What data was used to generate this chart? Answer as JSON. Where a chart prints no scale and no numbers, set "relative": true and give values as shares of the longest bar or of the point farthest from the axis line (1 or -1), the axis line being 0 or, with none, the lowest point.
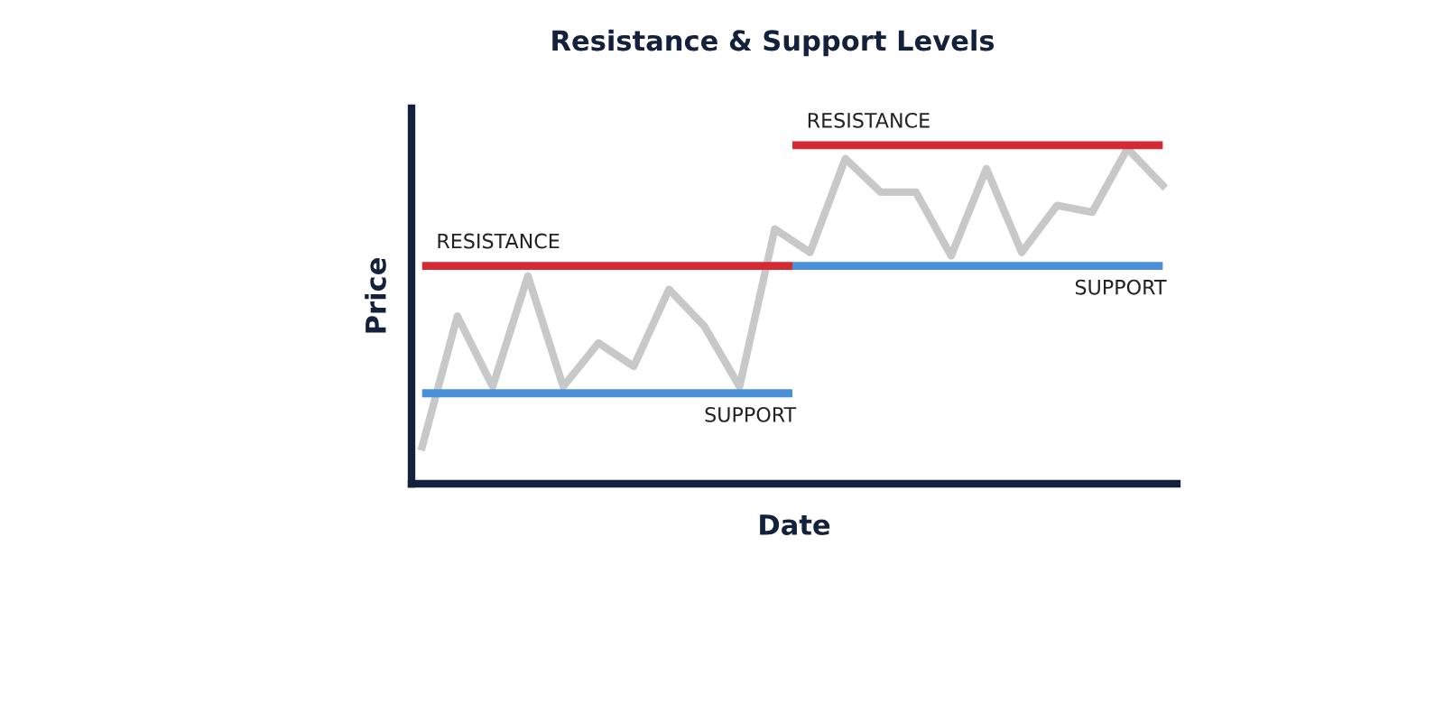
{
  "chart_data": {
    "type": "line",
    "title": "Resistance & Support Levels",
    "xlabel": "Date",
    "ylabel": "Price",
    "relative": true,
    "marker": "none",
    "line_style": "solid",
    "categories": [
      null,
      null,
      null,
      null,
      null,
      null,
      null,
      null,
      null,
      null,
      null,
      null,
      null,
      null,
      null,
      null,
      null,
      null,
      null,
      null,
      null,
      null
    ],
    "series": [
      {
        "color": "#c8c8c8",
        "values": [
          0.11,
          0.5,
          0.29,
          0.62,
          0.29,
          0.42,
          0.35,
          0.58,
          0.47,
          0.29,
          0.76,
          0.69,
          0.97,
          0.87,
          0.87,
          0.68,
          0.94,
          0.69,
          0.83,
          0.81,
          1,
          0.89
        ]
      }
    ],
    "ref_lines": [
      {
        "axis": "y",
        "value": 0.65,
        "label": "RESISTANCE",
        "color": "#d42a36"
      },
      {
        "axis": "y",
        "value": 0.27,
        "label": "SUPPORT",
        "color": "#4a90d9"
      },
      {
        "axis": "y",
        "value": 1.01,
        "label": "RESISTANCE",
        "color": "#d42a36"
      },
      {
        "axis": "y",
        "value": 0.65,
        "label": "SUPPORT",
        "color": "#4a90d9"
      }
    ]
  }
}
